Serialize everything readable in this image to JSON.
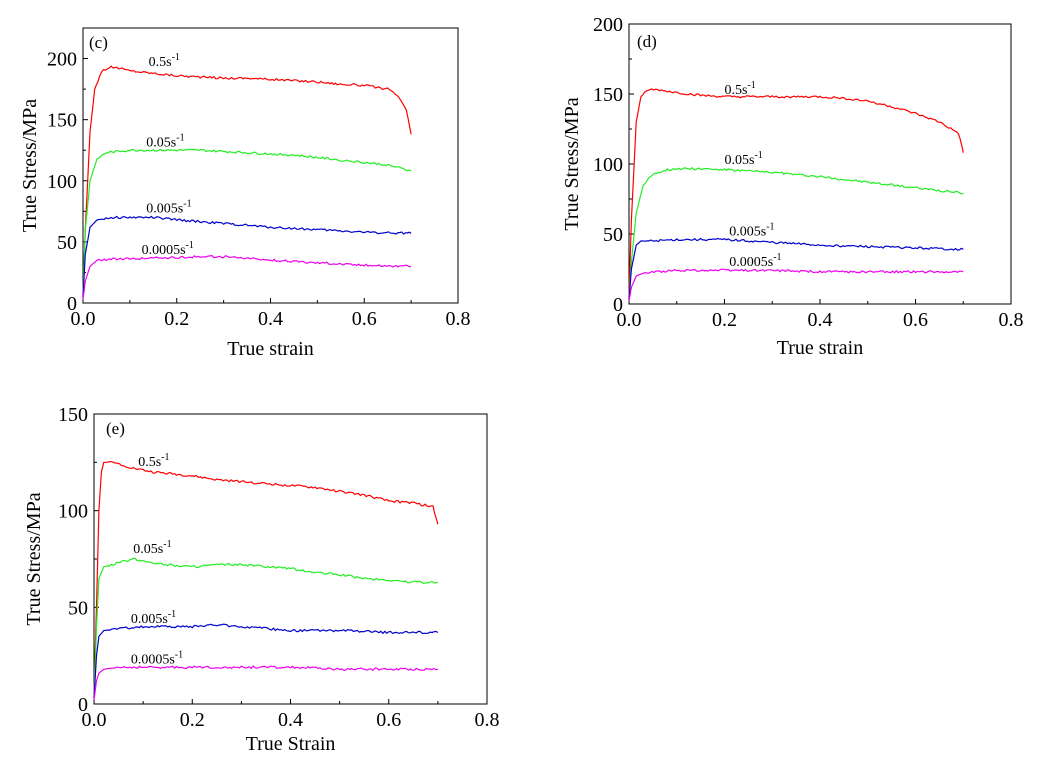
{
  "colors": {
    "rate_0_5": "#ff0000",
    "rate_0_05": "#22ee22",
    "rate_0_005": "#0000cc",
    "rate_0_0005": "#ee00ee"
  },
  "chart_data": [
    {
      "type": "line",
      "panel_label": "(c)",
      "xlabel": "True strain",
      "ylabel": "True Stress/MPa",
      "xlim": [
        0,
        0.8
      ],
      "ylim": [
        0,
        225
      ],
      "xticks": [
        0.0,
        0.2,
        0.4,
        0.6,
        0.8
      ],
      "xtick_labels": [
        "0.0",
        "0.2",
        "0.4",
        "0.6",
        "0.8"
      ],
      "yticks": [
        0,
        50,
        100,
        150,
        200
      ],
      "ytick_labels": [
        "0",
        "50",
        "100",
        "150",
        "200"
      ],
      "series": [
        {
          "name": "0.5s-1",
          "label_base": "0.5s",
          "label_sup": "-1",
          "color_key": "rate_0_5",
          "label_at": [
            0.14,
            194
          ],
          "x": [
            0,
            0.005,
            0.015,
            0.025,
            0.04,
            0.06,
            0.08,
            0.1,
            0.15,
            0.2,
            0.25,
            0.3,
            0.35,
            0.4,
            0.45,
            0.5,
            0.55,
            0.6,
            0.65,
            0.67,
            0.69,
            0.7
          ],
          "y": [
            5,
            60,
            140,
            175,
            190,
            193,
            192,
            190,
            188,
            186,
            185,
            184,
            184,
            183,
            182,
            181,
            179,
            178,
            175,
            170,
            158,
            138
          ]
        },
        {
          "name": "0.05s-1",
          "label_base": "0.05s",
          "label_sup": "-1",
          "color_key": "rate_0_05",
          "label_at": [
            0.135,
            128
          ],
          "x": [
            0,
            0.005,
            0.015,
            0.03,
            0.05,
            0.1,
            0.15,
            0.2,
            0.25,
            0.3,
            0.35,
            0.4,
            0.45,
            0.5,
            0.55,
            0.6,
            0.65,
            0.7
          ],
          "y": [
            5,
            60,
            100,
            118,
            123,
            125,
            125,
            125,
            125,
            124,
            123,
            122,
            121,
            119,
            117,
            115,
            113,
            108
          ]
        },
        {
          "name": "0.005s-1",
          "label_base": "0.005s",
          "label_sup": "-1",
          "color_key": "rate_0_005",
          "label_at": [
            0.135,
            74
          ],
          "x": [
            0,
            0.005,
            0.015,
            0.03,
            0.06,
            0.1,
            0.15,
            0.2,
            0.3,
            0.4,
            0.5,
            0.6,
            0.7
          ],
          "y": [
            5,
            40,
            62,
            68,
            70,
            70,
            70,
            68,
            65,
            62,
            60,
            58,
            57
          ]
        },
        {
          "name": "0.0005s-1",
          "label_base": "0.0005s",
          "label_sup": "-1",
          "color_key": "rate_0_0005",
          "label_at": [
            0.125,
            40
          ],
          "x": [
            0,
            0.005,
            0.015,
            0.03,
            0.06,
            0.1,
            0.15,
            0.2,
            0.25,
            0.3,
            0.4,
            0.5,
            0.6,
            0.7
          ],
          "y": [
            3,
            18,
            30,
            35,
            36,
            36,
            37,
            37,
            38,
            38,
            35,
            33,
            31,
            30
          ]
        }
      ]
    },
    {
      "type": "line",
      "panel_label": "(d)",
      "xlabel": "True strain",
      "ylabel": "True Stress/MPa",
      "xlim": [
        0,
        0.8
      ],
      "ylim": [
        0,
        200
      ],
      "xticks": [
        0.0,
        0.2,
        0.4,
        0.6,
        0.8
      ],
      "xtick_labels": [
        "0.0",
        "0.2",
        "0.4",
        "0.6",
        "0.8"
      ],
      "yticks": [
        0,
        50,
        100,
        150,
        200
      ],
      "ytick_labels": [
        "0",
        "50",
        "100",
        "150",
        "200"
      ],
      "series": [
        {
          "name": "0.5s-1",
          "label_base": "0.5s",
          "label_sup": "-1",
          "color_key": "rate_0_5",
          "label_at": [
            0.2,
            150
          ],
          "x": [
            0,
            0.005,
            0.015,
            0.025,
            0.04,
            0.06,
            0.1,
            0.15,
            0.2,
            0.25,
            0.3,
            0.35,
            0.4,
            0.45,
            0.5,
            0.55,
            0.6,
            0.65,
            0.69,
            0.7
          ],
          "y": [
            5,
            60,
            130,
            148,
            153,
            153,
            151,
            149,
            148,
            148,
            148,
            148,
            148,
            147,
            145,
            141,
            136,
            130,
            122,
            108
          ]
        },
        {
          "name": "0.05s-1",
          "label_base": "0.05s",
          "label_sup": "-1",
          "color_key": "rate_0_05",
          "label_at": [
            0.2,
            100
          ],
          "x": [
            0,
            0.005,
            0.015,
            0.03,
            0.05,
            0.08,
            0.12,
            0.2,
            0.3,
            0.4,
            0.5,
            0.6,
            0.7
          ],
          "y": [
            3,
            30,
            65,
            85,
            93,
            96,
            97,
            96,
            94,
            91,
            87,
            83,
            79
          ]
        },
        {
          "name": "0.005s-1",
          "label_base": "0.005s",
          "label_sup": "-1",
          "color_key": "rate_0_005",
          "label_at": [
            0.21,
            49
          ],
          "x": [
            0,
            0.005,
            0.015,
            0.025,
            0.05,
            0.1,
            0.15,
            0.2,
            0.3,
            0.4,
            0.5,
            0.6,
            0.7
          ],
          "y": [
            3,
            25,
            42,
            45,
            45,
            46,
            46,
            46,
            44,
            42,
            41,
            40,
            39
          ]
        },
        {
          "name": "0.0005s-1",
          "label_base": "0.0005s",
          "label_sup": "-1",
          "color_key": "rate_0_0005",
          "label_at": [
            0.21,
            27
          ],
          "x": [
            0,
            0.005,
            0.015,
            0.03,
            0.06,
            0.1,
            0.15,
            0.2,
            0.3,
            0.4,
            0.5,
            0.6,
            0.7
          ],
          "y": [
            2,
            12,
            20,
            22,
            23,
            24,
            24,
            24,
            24,
            23,
            23,
            23,
            23
          ]
        }
      ]
    },
    {
      "type": "line",
      "panel_label": "(e)",
      "xlabel": "True Strain",
      "ylabel": "True Stress/MPa",
      "xlim": [
        0,
        0.8
      ],
      "ylim": [
        0,
        150
      ],
      "xticks": [
        0.0,
        0.2,
        0.4,
        0.6,
        0.8
      ],
      "xtick_labels": [
        "0.0",
        "0.2",
        "0.4",
        "0.6",
        "0.8"
      ],
      "yticks": [
        0,
        50,
        100,
        150
      ],
      "ytick_labels": [
        "0",
        "50",
        "100",
        "150"
      ],
      "series": [
        {
          "name": "0.5s-1",
          "label_base": "0.5s",
          "label_sup": "-1",
          "color_key": "rate_0_5",
          "label_at": [
            0.09,
            123
          ],
          "x": [
            0,
            0.005,
            0.01,
            0.015,
            0.02,
            0.04,
            0.08,
            0.12,
            0.2,
            0.25,
            0.3,
            0.35,
            0.4,
            0.45,
            0.5,
            0.55,
            0.6,
            0.65,
            0.69,
            0.7
          ],
          "y": [
            5,
            50,
            100,
            120,
            125,
            125,
            122,
            120,
            118,
            116,
            115,
            114,
            113,
            112,
            110,
            108,
            105,
            104,
            102,
            93
          ]
        },
        {
          "name": "0.05s-1",
          "label_base": "0.05s",
          "label_sup": "-1",
          "color_key": "rate_0_05",
          "label_at": [
            0.08,
            78
          ],
          "x": [
            0,
            0.005,
            0.01,
            0.02,
            0.05,
            0.08,
            0.1,
            0.15,
            0.2,
            0.25,
            0.3,
            0.35,
            0.4,
            0.45,
            0.5,
            0.55,
            0.6,
            0.65,
            0.7
          ],
          "y": [
            3,
            40,
            65,
            71,
            73,
            75,
            74,
            72,
            71,
            72,
            72,
            71,
            70,
            68,
            67,
            65,
            64,
            63,
            63
          ]
        },
        {
          "name": "0.005s-1",
          "label_base": "0.005s",
          "label_sup": "-1",
          "color_key": "rate_0_005",
          "label_at": [
            0.075,
            42
          ],
          "x": [
            0,
            0.005,
            0.01,
            0.02,
            0.05,
            0.1,
            0.15,
            0.2,
            0.25,
            0.3,
            0.35,
            0.4,
            0.5,
            0.6,
            0.7
          ],
          "y": [
            3,
            25,
            35,
            38,
            39,
            40,
            40,
            40,
            41,
            40,
            39,
            38,
            38,
            37,
            37
          ]
        },
        {
          "name": "0.0005s-1",
          "label_base": "0.0005s",
          "label_sup": "-1",
          "color_key": "rate_0_0005",
          "label_at": [
            0.075,
            21
          ],
          "x": [
            0,
            0.005,
            0.01,
            0.02,
            0.05,
            0.1,
            0.2,
            0.3,
            0.4,
            0.5,
            0.6,
            0.7
          ],
          "y": [
            2,
            12,
            16,
            18,
            19,
            19,
            19,
            19,
            19,
            18,
            18,
            18
          ]
        }
      ]
    }
  ]
}
